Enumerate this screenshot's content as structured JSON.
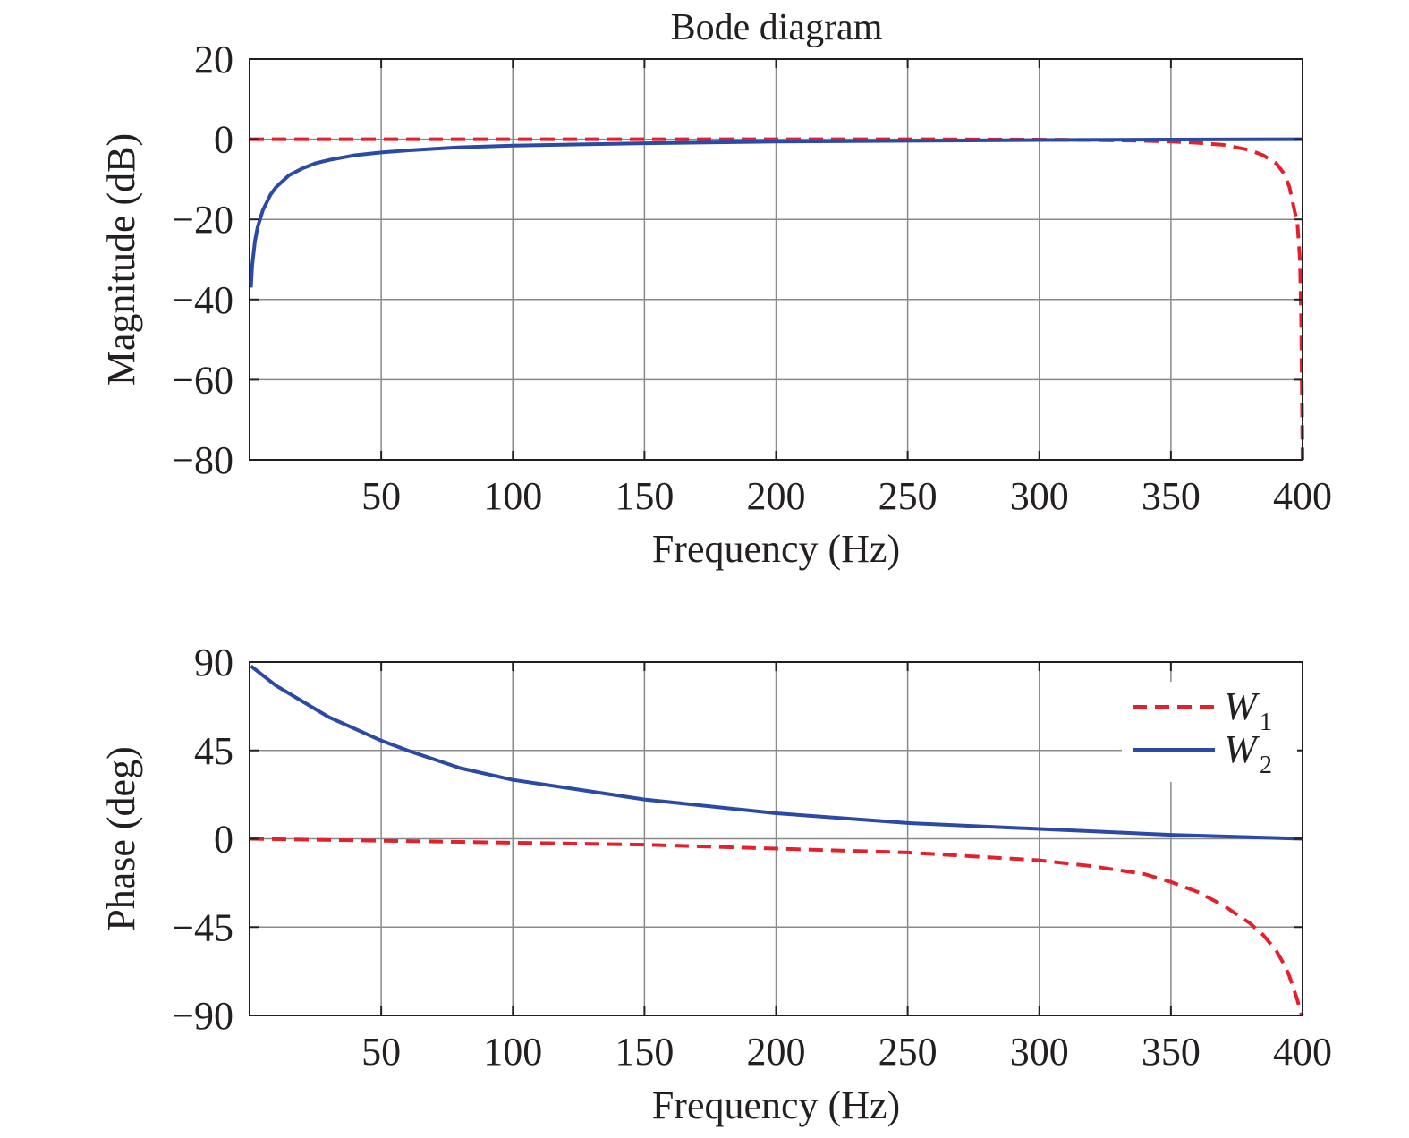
{
  "figure": {
    "title": "Bode diagram"
  },
  "chart_data": [
    {
      "type": "line",
      "panel": "magnitude",
      "title": "Bode diagram",
      "xlabel": "Frequency (Hz)",
      "ylabel": "Magnitude (dB)",
      "xlim": [
        0,
        400
      ],
      "ylim": [
        -80,
        20
      ],
      "xticks": [
        50,
        100,
        150,
        200,
        250,
        300,
        350,
        400
      ],
      "yticks": [
        20,
        0,
        -20,
        -40,
        -60,
        -80
      ],
      "xtick_labels": [
        "50",
        "100",
        "150",
        "200",
        "250",
        "300",
        "350",
        "400"
      ],
      "ytick_labels": [
        "20",
        "0",
        "−20",
        "−40",
        "−60",
        "−80"
      ],
      "grid": true,
      "series": [
        {
          "name": "W1",
          "style": "dashed",
          "color": "#e3212d",
          "x": [
            0,
            50,
            100,
            150,
            200,
            250,
            300,
            320,
            340,
            350,
            360,
            370,
            380,
            385,
            390,
            393,
            395,
            397,
            398,
            399,
            399.5,
            400
          ],
          "y": [
            0,
            0,
            0,
            0,
            0,
            0,
            -0.1,
            -0.2,
            -0.4,
            -0.6,
            -0.9,
            -1.4,
            -2.7,
            -4,
            -6,
            -8.6,
            -11.9,
            -18,
            -20.5,
            -30,
            -45,
            -80
          ]
        },
        {
          "name": "W2",
          "style": "solid",
          "color": "#2a4aa6",
          "x": [
            0.5,
            1,
            2,
            3,
            5,
            8,
            10,
            15,
            20,
            25,
            30,
            40,
            50,
            60,
            80,
            100,
            150,
            200,
            250,
            300,
            350,
            400
          ],
          "y": [
            -37,
            -31.5,
            -25.6,
            -22.1,
            -17.8,
            -13.8,
            -12.0,
            -9.0,
            -7.3,
            -6.0,
            -5.2,
            -4.0,
            -3.3,
            -2.8,
            -2.0,
            -1.6,
            -1.0,
            -0.6,
            -0.4,
            -0.2,
            -0.1,
            0
          ]
        }
      ]
    },
    {
      "type": "line",
      "panel": "phase",
      "xlabel": "Frequency (Hz)",
      "ylabel": "Phase (deg)",
      "xlim": [
        0,
        400
      ],
      "ylim": [
        -90,
        90
      ],
      "xticks": [
        50,
        100,
        150,
        200,
        250,
        300,
        350,
        400
      ],
      "yticks": [
        90,
        45,
        0,
        -45,
        -90
      ],
      "xtick_labels": [
        "50",
        "100",
        "150",
        "200",
        "250",
        "300",
        "350",
        "400"
      ],
      "ytick_labels": [
        "90",
        "45",
        "0",
        "−45",
        "−90"
      ],
      "grid": true,
      "legend": {
        "position": "top-right",
        "entries": [
          {
            "label": "W",
            "subscript": "1",
            "style": "dashed",
            "color": "#e3212d"
          },
          {
            "label": "W",
            "subscript": "2",
            "style": "solid",
            "color": "#2a4aa6"
          }
        ]
      },
      "series": [
        {
          "name": "W1",
          "style": "dashed",
          "color": "#e3212d",
          "x": [
            0,
            50,
            100,
            150,
            200,
            250,
            300,
            320,
            340,
            350,
            360,
            370,
            380,
            385,
            390,
            393,
            395,
            397,
            398,
            399,
            399.5,
            400
          ],
          "y": [
            0,
            -1,
            -2,
            -3,
            -5,
            -7,
            -11,
            -14,
            -18,
            -22,
            -27,
            -34,
            -43,
            -49,
            -57,
            -64,
            -70,
            -78,
            -82,
            -87,
            -89,
            -90
          ]
        },
        {
          "name": "W2",
          "style": "solid",
          "color": "#2a4aa6",
          "x": [
            0.5,
            10,
            20,
            30,
            40,
            50,
            60,
            80,
            100,
            120,
            150,
            200,
            250,
            300,
            350,
            400
          ],
          "y": [
            88,
            78,
            70,
            62,
            56,
            50,
            45,
            36,
            30,
            26,
            20,
            13,
            8,
            5,
            2,
            0
          ]
        }
      ]
    }
  ]
}
